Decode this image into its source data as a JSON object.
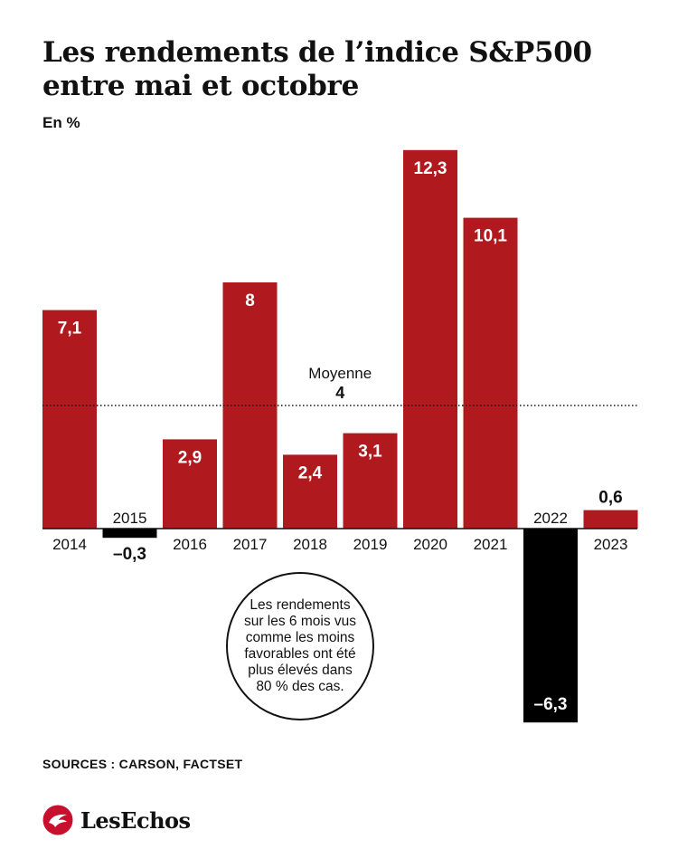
{
  "title": "Les rendements de l’indice S&P500 entre mai et octobre",
  "unit": "En %",
  "sources": "SOURCES : CARSON, FACTSET",
  "brand": "LesEchos",
  "callout": "Les rendements sur les 6 mois vus comme les moins favorables ont été plus élevés dans 80 % des cas.",
  "colors": {
    "positive": "#b0191d",
    "negative": "#000000",
    "logo": "#c8102e"
  },
  "chart_data": {
    "type": "bar",
    "title": "Les rendements de l’indice S&P500 entre mai et octobre",
    "ylabel": "En %",
    "categories": [
      "2014",
      "2015",
      "2016",
      "2017",
      "2018",
      "2019",
      "2020",
      "2021",
      "2022",
      "2023"
    ],
    "values": [
      7.1,
      -0.3,
      2.9,
      8,
      2.4,
      3.1,
      12.3,
      10.1,
      -6.3,
      0.6
    ],
    "value_labels": [
      "7,1",
      "–0,3",
      "2,9",
      "8",
      "2,4",
      "3,1",
      "12,3",
      "10,1",
      "–6,3",
      "0,6"
    ],
    "reference_line": {
      "label": "Moyenne",
      "value": 4,
      "value_label": "4",
      "style": "dotted"
    },
    "grid": false,
    "legend": "none"
  }
}
